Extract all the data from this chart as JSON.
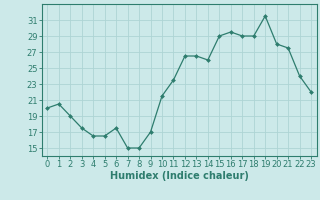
{
  "x": [
    0,
    1,
    2,
    3,
    4,
    5,
    6,
    7,
    8,
    9,
    10,
    11,
    12,
    13,
    14,
    15,
    16,
    17,
    18,
    19,
    20,
    21,
    22,
    23
  ],
  "y": [
    20,
    20.5,
    19,
    17.5,
    16.5,
    16.5,
    17.5,
    15,
    15,
    17,
    21.5,
    23.5,
    26.5,
    26.5,
    26,
    29,
    29.5,
    29,
    29,
    31.5,
    28,
    27.5,
    24,
    22
  ],
  "line_color": "#2e7d6e",
  "marker": "D",
  "marker_size": 2,
  "bg_color": "#cce9e9",
  "grid_color": "#aed4d4",
  "xlabel": "Humidex (Indice chaleur)",
  "xlim": [
    -0.5,
    23.5
  ],
  "ylim": [
    14,
    33
  ],
  "yticks": [
    15,
    17,
    19,
    21,
    23,
    25,
    27,
    29,
    31
  ],
  "xticks": [
    0,
    1,
    2,
    3,
    4,
    5,
    6,
    7,
    8,
    9,
    10,
    11,
    12,
    13,
    14,
    15,
    16,
    17,
    18,
    19,
    20,
    21,
    22,
    23
  ],
  "tick_color": "#2e7d6e",
  "axis_color": "#2e7d6e",
  "label_fontsize": 7,
  "tick_fontsize": 6
}
